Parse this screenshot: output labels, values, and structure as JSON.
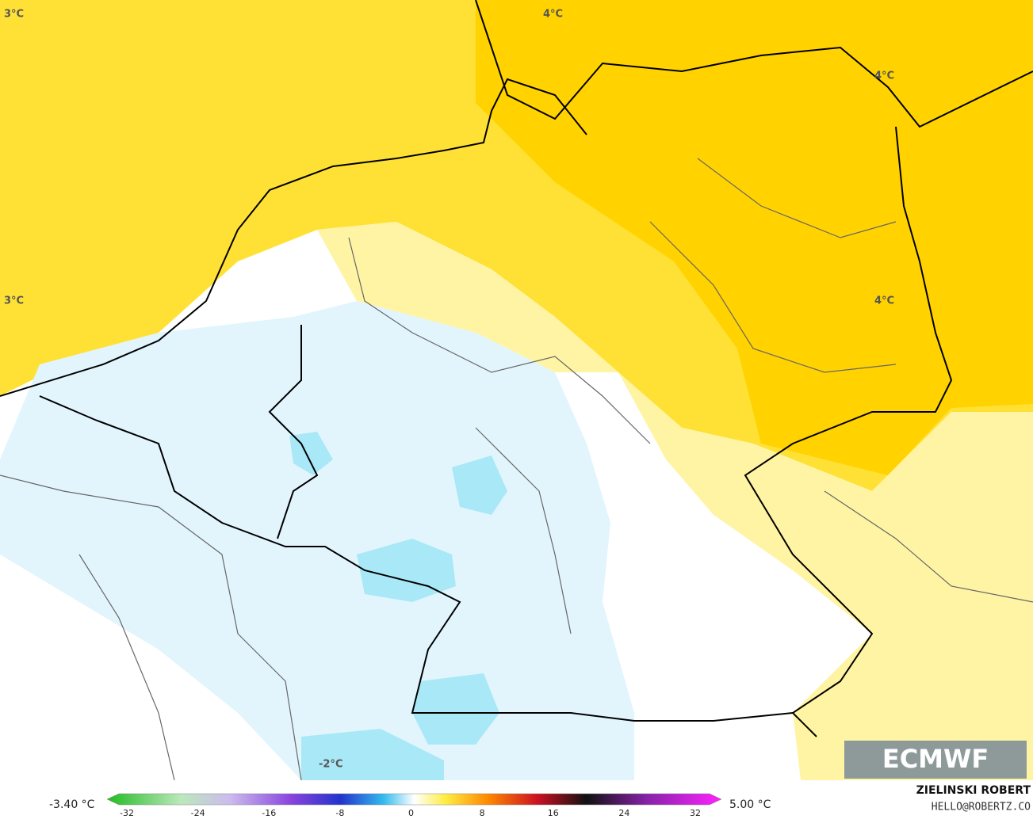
{
  "map": {
    "labels": [
      "3°C",
      "3°C",
      "4°C",
      "4°C",
      "4°C",
      "-2°C"
    ],
    "logo": "ECMWF"
  },
  "colorbar": {
    "min_label": "-3.40 °C",
    "max_label": "5.00 °C",
    "ticks": [
      -32,
      -24,
      -16,
      -8,
      0,
      8,
      16,
      24,
      32
    ]
  },
  "credit": {
    "name": "ZIELINSKI ROBERT",
    "contact": "HELLO@ROBERTZ.CO"
  }
}
